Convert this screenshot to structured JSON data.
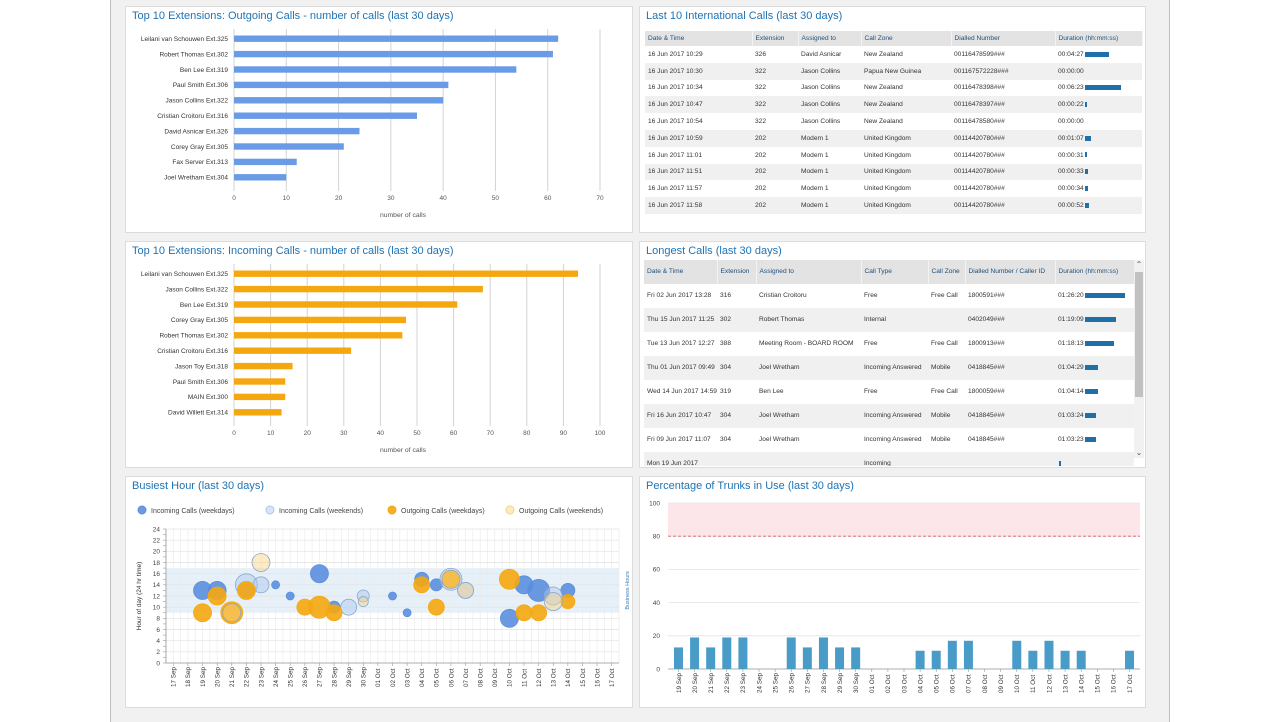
{
  "outgoing": {
    "title": "Top 10 Extensions: Outgoing Calls - number of calls (last 30 days)",
    "chart_data": {
      "type": "bar",
      "orientation": "horizontal",
      "categories": [
        "Leilani van Schouwen Ext.325",
        "Robert Thomas Ext.302",
        "Ben Lee Ext.319",
        "Paul Smith Ext.306",
        "Jason Collins Ext.322",
        "Cristian Croitoru Ext.316",
        "David Asnicar Ext.326",
        "Corey Gray Ext.305",
        "Fax Server Ext.313",
        "Joel Wretham Ext.304"
      ],
      "values": [
        62,
        61,
        54,
        41,
        40,
        35,
        24,
        21,
        12,
        10
      ],
      "xlim": [
        0,
        70
      ],
      "ticks": [
        0,
        10,
        20,
        30,
        40,
        50,
        60,
        70
      ],
      "xlabel": "number of calls",
      "color": "#6a9be6"
    }
  },
  "incoming": {
    "title": "Top 10 Extensions: Incoming Calls - number of calls (last 30 days)",
    "chart_data": {
      "type": "bar",
      "orientation": "horizontal",
      "categories": [
        "Leilani van Schouwen Ext.325",
        "Jason Collins Ext.322",
        "Ben Lee Ext.319",
        "Corey Gray Ext.305",
        "Robert Thomas Ext.302",
        "Cristian Croitoru Ext.316",
        "Jason Toy Ext.318",
        "Paul Smith Ext.306",
        "MAIN Ext.300",
        "David Willett Ext.314"
      ],
      "values": [
        94,
        68,
        61,
        47,
        46,
        32,
        16,
        14,
        14,
        13
      ],
      "xlim": [
        0,
        100
      ],
      "ticks": [
        0,
        10,
        20,
        30,
        40,
        50,
        60,
        70,
        80,
        90,
        100
      ],
      "xlabel": "number of calls",
      "color": "#f5a70f"
    }
  },
  "international": {
    "title": "Last 10 International Calls (last 30 days)",
    "columns": [
      "Date & Time",
      "Extension",
      "Assigned to",
      "Call Zone",
      "Dialled Number",
      "Duration (hh:mm:ss)"
    ],
    "rows": [
      {
        "date": "16 Jun 2017 10:29",
        "ext": "326",
        "name": "David Asnicar",
        "zone": "New Zealand",
        "number": "00116478599###",
        "duration": "00:04:27",
        "bar": 0.62
      },
      {
        "date": "16 Jun 2017 10:30",
        "ext": "322",
        "name": "Jason Collins",
        "zone": "Papua New Guinea",
        "number": "001167572228###",
        "duration": "00:00:00",
        "bar": 0
      },
      {
        "date": "16 Jun 2017 10:34",
        "ext": "322",
        "name": "Jason Collins",
        "zone": "New Zealand",
        "number": "00116478398###",
        "duration": "00:06:23",
        "bar": 0.9
      },
      {
        "date": "16 Jun 2017 10:47",
        "ext": "322",
        "name": "Jason Collins",
        "zone": "New Zealand",
        "number": "00116478397###",
        "duration": "00:00:22",
        "bar": 0.05
      },
      {
        "date": "16 Jun 2017 10:54",
        "ext": "322",
        "name": "Jason Collins",
        "zone": "New Zealand",
        "number": "00116478580###",
        "duration": "00:00:00",
        "bar": 0
      },
      {
        "date": "16 Jun 2017 10:59",
        "ext": "202",
        "name": "Modem 1",
        "zone": "United Kingdom",
        "number": "00114420780###",
        "duration": "00:01:07",
        "bar": 0.16
      },
      {
        "date": "16 Jun 2017 11:01",
        "ext": "202",
        "name": "Modem 1",
        "zone": "United Kingdom",
        "number": "00114420780###",
        "duration": "00:00:31",
        "bar": 0.07
      },
      {
        "date": "16 Jun 2017 11:51",
        "ext": "202",
        "name": "Modem 1",
        "zone": "United Kingdom",
        "number": "00114420780###",
        "duration": "00:00:33",
        "bar": 0.08
      },
      {
        "date": "16 Jun 2017 11:57",
        "ext": "202",
        "name": "Modem 1",
        "zone": "United Kingdom",
        "number": "00114420780###",
        "duration": "00:00:34",
        "bar": 0.08
      },
      {
        "date": "16 Jun 2017 11:58",
        "ext": "202",
        "name": "Modem 1",
        "zone": "United Kingdom",
        "number": "00114420780###",
        "duration": "00:00:52",
        "bar": 0.12
      }
    ]
  },
  "longest": {
    "title": "Longest Calls (last 30 days)",
    "columns": [
      "Date & Time",
      "Extension",
      "Assigned to",
      "Call Type",
      "Call Zone",
      "Dialled Number / Caller ID",
      "Duration (hh:mm:ss)"
    ],
    "rows": [
      {
        "date": "Fri 02 Jun 2017 13:28",
        "ext": "316",
        "name": "Cristian Croitoru",
        "type": "Free",
        "zone": "Free Call",
        "number": "1800591###",
        "duration": "01:26:20",
        "bar": 1.0
      },
      {
        "date": "Thu 15 Jun 2017 11:25",
        "ext": "302",
        "name": "Robert Thomas",
        "type": "Internal",
        "zone": "",
        "number": "0402049###",
        "duration": "01:19:09",
        "bar": 0.78
      },
      {
        "date": "Tue 13 Jun 2017 12:27",
        "ext": "388",
        "name": "Meeting Room - BOARD ROOM",
        "type": "Free",
        "zone": "Free Call",
        "number": "1800913###",
        "duration": "01:18:13",
        "bar": 0.74
      },
      {
        "date": "Thu 01 Jun 2017 09:49",
        "ext": "304",
        "name": "Joel Wretham",
        "type": "Incoming Answered",
        "zone": "Mobile",
        "number": "0418845###",
        "duration": "01:04:29",
        "bar": 0.33
      },
      {
        "date": "Wed 14 Jun 2017 14:59",
        "ext": "319",
        "name": "Ben Lee",
        "type": "Free",
        "zone": "Free Call",
        "number": "1800059###",
        "duration": "01:04:14",
        "bar": 0.33
      },
      {
        "date": "Fri 16 Jun 2017 10:47",
        "ext": "304",
        "name": "Joel Wretham",
        "type": "Incoming Answered",
        "zone": "Mobile",
        "number": "0418845###",
        "duration": "01:03:24",
        "bar": 0.28
      },
      {
        "date": "Fri 09 Jun 2017 11:07",
        "ext": "304",
        "name": "Joel Wretham",
        "type": "Incoming Answered",
        "zone": "Mobile",
        "number": "0418845###",
        "duration": "01:03:23",
        "bar": 0.28
      },
      {
        "date": "Mon 19 Jun 2017",
        "ext": "",
        "name": "",
        "type": "Incoming",
        "zone": "",
        "number": "",
        "duration": "",
        "bar": 0.05
      }
    ]
  },
  "busiest": {
    "title": "Busiest Hour (last 30 days)",
    "chart_data": {
      "type": "scatter",
      "legend": [
        "Incoming Calls (weekdays)",
        "Incoming Calls (weekends)",
        "Outgoing Calls (weekdays)",
        "Outgoing Calls (weekends)"
      ],
      "colors": [
        "#5b8fde",
        "#a9c6ef",
        "#f5a70f",
        "#f9d37c"
      ],
      "ylabel": "Hour of day (24 hr time)",
      "band_label": "Business Hours",
      "ylim": [
        0,
        24
      ],
      "yticks": [
        0,
        2,
        4,
        6,
        8,
        10,
        12,
        14,
        16,
        18,
        20,
        22,
        24
      ],
      "band": [
        9,
        17
      ],
      "categories": [
        "17 Sep",
        "18 Sep",
        "19 Sep",
        "20 Sep",
        "21 Sep",
        "22 Sep",
        "23 Sep",
        "24 Sep",
        "25 Sep",
        "26 Sep",
        "27 Sep",
        "28 Sep",
        "29 Sep",
        "30 Sep",
        "01 Oct",
        "02 Oct",
        "03 Oct",
        "04 Oct",
        "05 Oct",
        "06 Oct",
        "07 Oct",
        "08 Oct",
        "09 Oct",
        "10 Oct",
        "11 Oct",
        "12 Oct",
        "13 Oct",
        "14 Oct",
        "15 Oct",
        "16 Oct",
        "17 Oct"
      ],
      "points": [
        {
          "s": 0,
          "x": 2,
          "y": 13,
          "r": 9
        },
        {
          "s": 0,
          "x": 3,
          "y": 13,
          "r": 9
        },
        {
          "s": 0,
          "x": 5,
          "y": 13,
          "r": 7
        },
        {
          "s": 0,
          "x": 7,
          "y": 14,
          "r": 4
        },
        {
          "s": 0,
          "x": 8,
          "y": 12,
          "r": 4
        },
        {
          "s": 0,
          "x": 10,
          "y": 16,
          "r": 9
        },
        {
          "s": 0,
          "x": 11,
          "y": 10,
          "r": 6
        },
        {
          "s": 0,
          "x": 15,
          "y": 12,
          "r": 4
        },
        {
          "s": 0,
          "x": 16,
          "y": 9,
          "r": 4
        },
        {
          "s": 0,
          "x": 17,
          "y": 15,
          "r": 7
        },
        {
          "s": 0,
          "x": 18,
          "y": 14,
          "r": 6
        },
        {
          "s": 0,
          "x": 23,
          "y": 8,
          "r": 9
        },
        {
          "s": 0,
          "x": 24,
          "y": 14,
          "r": 9
        },
        {
          "s": 0,
          "x": 25,
          "y": 13,
          "r": 11
        },
        {
          "s": 0,
          "x": 27,
          "y": 13,
          "r": 7
        },
        {
          "s": 1,
          "x": 5,
          "y": 14,
          "r": 11
        },
        {
          "s": 1,
          "x": 6,
          "y": 14,
          "r": 8
        },
        {
          "s": 1,
          "x": 12,
          "y": 10,
          "r": 8
        },
        {
          "s": 1,
          "x": 13,
          "y": 12,
          "r": 6
        },
        {
          "s": 1,
          "x": 19,
          "y": 15,
          "r": 11
        },
        {
          "s": 1,
          "x": 20,
          "y": 13,
          "r": 8
        },
        {
          "s": 1,
          "x": 26,
          "y": 12,
          "r": 9
        },
        {
          "s": 2,
          "x": 2,
          "y": 9,
          "r": 9
        },
        {
          "s": 2,
          "x": 3,
          "y": 12,
          "r": 9
        },
        {
          "s": 2,
          "x": 4,
          "y": 9,
          "r": 11
        },
        {
          "s": 2,
          "x": 5,
          "y": 13,
          "r": 9
        },
        {
          "s": 2,
          "x": 9,
          "y": 10,
          "r": 8
        },
        {
          "s": 2,
          "x": 10,
          "y": 10,
          "r": 11
        },
        {
          "s": 2,
          "x": 11,
          "y": 9,
          "r": 8
        },
        {
          "s": 2,
          "x": 17,
          "y": 14,
          "r": 8
        },
        {
          "s": 2,
          "x": 18,
          "y": 10,
          "r": 8
        },
        {
          "s": 2,
          "x": 19,
          "y": 15,
          "r": 9
        },
        {
          "s": 2,
          "x": 23,
          "y": 15,
          "r": 10
        },
        {
          "s": 2,
          "x": 24,
          "y": 9,
          "r": 8
        },
        {
          "s": 2,
          "x": 25,
          "y": 9,
          "r": 8
        },
        {
          "s": 2,
          "x": 27,
          "y": 11,
          "r": 7
        },
        {
          "s": 3,
          "x": 4,
          "y": 9,
          "r": 9
        },
        {
          "s": 3,
          "x": 6,
          "y": 18,
          "r": 9
        },
        {
          "s": 3,
          "x": 13,
          "y": 11,
          "r": 5
        },
        {
          "s": 3,
          "x": 19,
          "y": 15,
          "r": 9
        },
        {
          "s": 3,
          "x": 20,
          "y": 13,
          "r": 8
        },
        {
          "s": 3,
          "x": 26,
          "y": 11,
          "r": 9
        }
      ]
    }
  },
  "trunks": {
    "title": "Percentage of Trunks in Use (last 30 days)",
    "chart_data": {
      "type": "bar",
      "categories": [
        "19 Sep",
        "20 Sep",
        "21 Sep",
        "22 Sep",
        "23 Sep",
        "24 Sep",
        "25 Sep",
        "26 Sep",
        "27 Sep",
        "28 Sep",
        "29 Sep",
        "30 Sep",
        "01 Oct",
        "02 Oct",
        "03 Oct",
        "04 Oct",
        "05 Oct",
        "06 Oct",
        "07 Oct",
        "08 Oct",
        "09 Oct",
        "10 Oct",
        "11 Oct",
        "12 Oct",
        "13 Oct",
        "14 Oct",
        "15 Oct",
        "16 Oct",
        "17 Oct"
      ],
      "values": [
        13,
        19,
        13,
        19,
        19,
        0,
        0,
        19,
        13,
        19,
        13,
        13,
        0,
        0,
        0,
        11,
        11,
        17,
        17,
        0,
        0,
        17,
        11,
        17,
        11,
        11,
        0,
        0,
        11
      ],
      "ylim": [
        0,
        100
      ],
      "yticks": [
        0,
        20,
        40,
        60,
        80,
        100
      ],
      "threshold": 80,
      "color": "#4a9cc8"
    }
  }
}
